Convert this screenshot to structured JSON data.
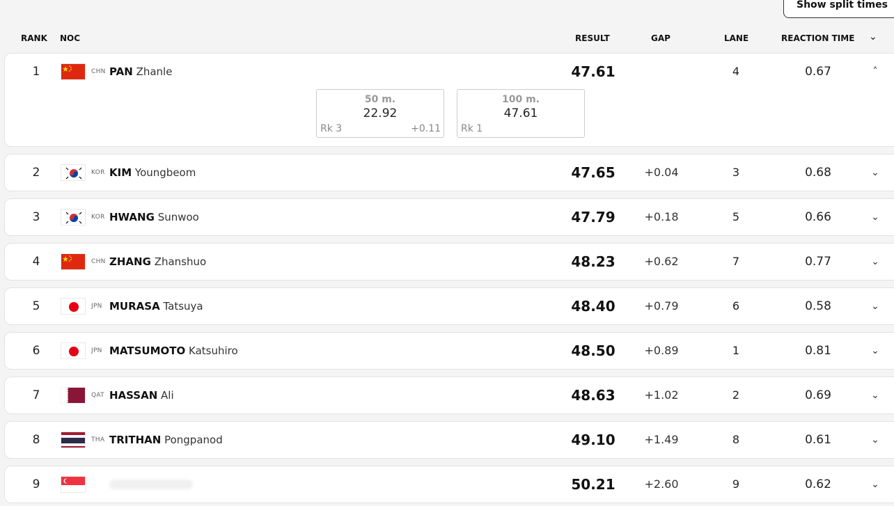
{
  "toolbar": {
    "split_label": "Show split times"
  },
  "header": {
    "rank": "RANK",
    "noc": "NOC",
    "result": "RESULT",
    "gap": "GAP",
    "lane": "LANE",
    "reaction": "REACTION TIME",
    "chevron": "⌄"
  },
  "rows": [
    {
      "rank": "1",
      "noc": "CHN",
      "last": "PAN",
      "first": "Zhanle",
      "result": "47.61",
      "gap": "",
      "lane": "4",
      "reaction": "0.67",
      "chevron": "˄",
      "splits": [
        {
          "label": "50 m.",
          "time": "22.92",
          "rk": "Rk 3",
          "diff": "+0.11"
        },
        {
          "label": "100 m.",
          "time": "47.61",
          "rk": "Rk 1",
          "diff": ""
        }
      ]
    },
    {
      "rank": "2",
      "noc": "KOR",
      "last": "KIM",
      "first": "Youngbeom",
      "result": "47.65",
      "gap": "+0.04",
      "lane": "3",
      "reaction": "0.68",
      "chevron": "⌄"
    },
    {
      "rank": "3",
      "noc": "KOR",
      "last": "HWANG",
      "first": "Sunwoo",
      "result": "47.79",
      "gap": "+0.18",
      "lane": "5",
      "reaction": "0.66",
      "chevron": "⌄"
    },
    {
      "rank": "4",
      "noc": "CHN",
      "last": "ZHANG",
      "first": "Zhanshuo",
      "result": "48.23",
      "gap": "+0.62",
      "lane": "7",
      "reaction": "0.77",
      "chevron": "⌄"
    },
    {
      "rank": "5",
      "noc": "JPN",
      "last": "MURASA",
      "first": "Tatsuya",
      "result": "48.40",
      "gap": "+0.79",
      "lane": "6",
      "reaction": "0.58",
      "chevron": "⌄"
    },
    {
      "rank": "6",
      "noc": "JPN",
      "last": "MATSUMOTO",
      "first": "Katsuhiro",
      "result": "48.50",
      "gap": "+0.89",
      "lane": "1",
      "reaction": "0.81",
      "chevron": "⌄"
    },
    {
      "rank": "7",
      "noc": "QAT",
      "last": "HASSAN",
      "first": "Ali",
      "result": "48.63",
      "gap": "+1.02",
      "lane": "2",
      "reaction": "0.69",
      "chevron": "⌄"
    },
    {
      "rank": "8",
      "noc": "THA",
      "last": "TRITHAN",
      "first": "Pongpanod",
      "result": "49.10",
      "gap": "+1.49",
      "lane": "8",
      "reaction": "0.61",
      "chevron": "⌄"
    },
    {
      "rank": "9",
      "noc": "",
      "last": "",
      "first": "",
      "result": "50.21",
      "gap": "+2.60",
      "lane": "9",
      "reaction": "0.62",
      "chevron": "⌄"
    }
  ]
}
